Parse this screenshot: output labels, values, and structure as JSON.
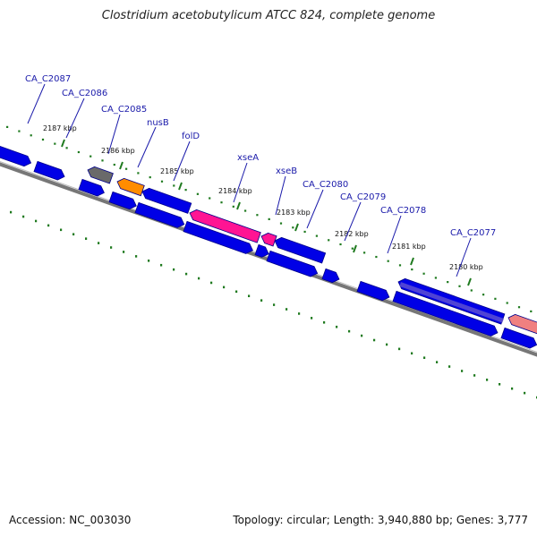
{
  "title": "Clostridium acetobutylicum ATCC 824, complete genome",
  "footer": {
    "accession": "Accession: NC_003030",
    "summary": "Topology: circular; Length: 3,940,880 bp; Genes: 3,777"
  },
  "colors": {
    "cds": "#0000e6",
    "cds_edge": "#00008a",
    "backbone": "#777777",
    "tick": "#1f7a1f",
    "label": "#1a1aaa",
    "orange": "#ff8c00",
    "pink": "#ff1493",
    "grey_gene": "#6a6a6a",
    "violet": "#6a5acd",
    "salmon": "#f08080"
  },
  "ticks": [
    {
      "label": "2187 kbp"
    },
    {
      "label": "2186 kbp"
    },
    {
      "label": "2185 kbp"
    },
    {
      "label": "2184 kbp"
    },
    {
      "label": "2183 kbp"
    },
    {
      "label": "2182 kbp"
    },
    {
      "label": "2181 kbp"
    },
    {
      "label": "2180 kbp"
    }
  ],
  "gene_labels": [
    {
      "name": "CA_C2087"
    },
    {
      "name": "CA_C2086"
    },
    {
      "name": "CA_C2085"
    },
    {
      "name": "nusB"
    },
    {
      "name": "folD"
    },
    {
      "name": "xseA"
    },
    {
      "name": "xseB"
    },
    {
      "name": "CA_C2080"
    },
    {
      "name": "CA_C2079"
    },
    {
      "name": "CA_C2078"
    },
    {
      "name": "CA_C2077"
    }
  ]
}
